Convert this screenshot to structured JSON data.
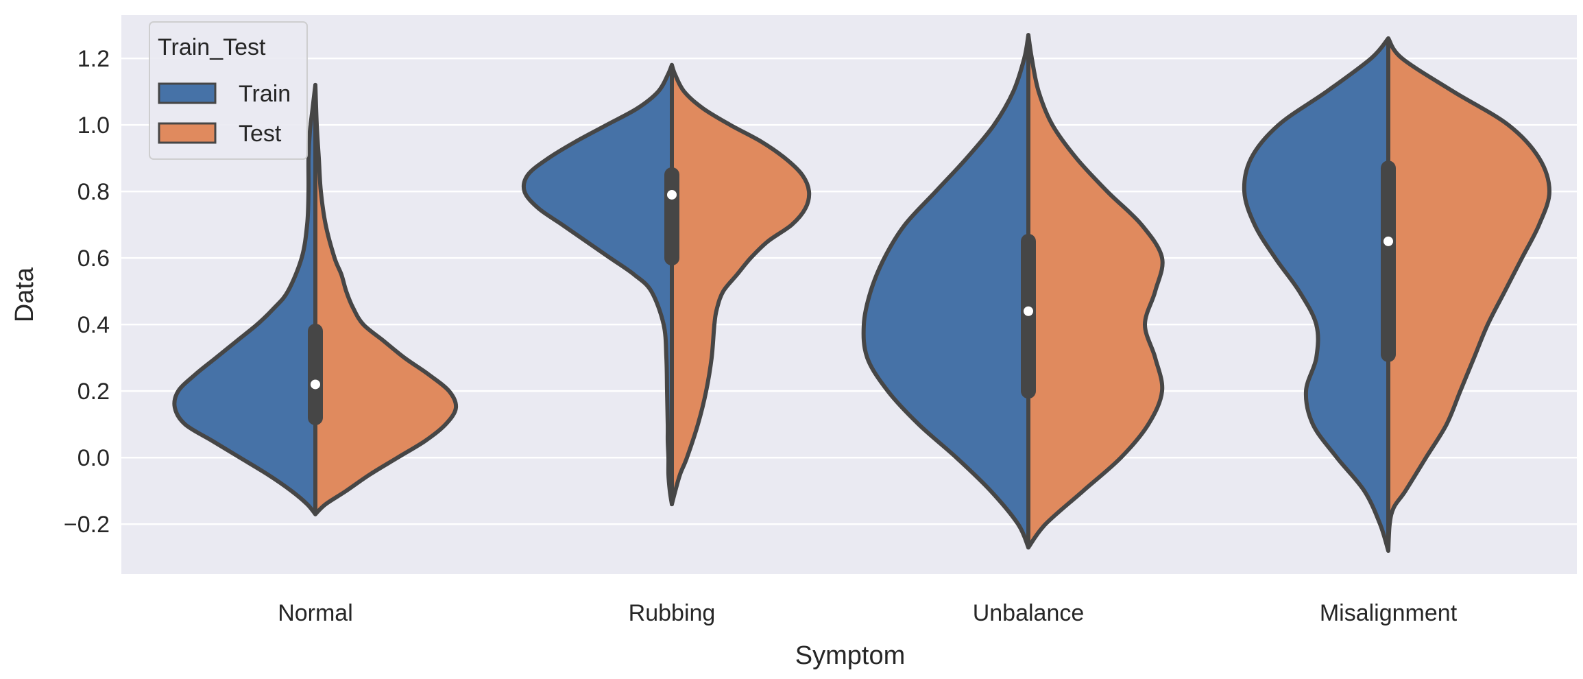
{
  "chart_data": {
    "type": "violin",
    "title": "",
    "xlabel": "Symptom",
    "ylabel": "Data",
    "ylim": [
      -0.35,
      1.33
    ],
    "yticks": [
      -0.2,
      0.0,
      0.2,
      0.4,
      0.6,
      0.8,
      1.0,
      1.2
    ],
    "ytick_labels": [
      "−0.2",
      "0.0",
      "0.2",
      "0.4",
      "0.6",
      "0.8",
      "1.0",
      "1.2"
    ],
    "grid": true,
    "categories": [
      "Normal",
      "Rubbing",
      "Unbalance",
      "Misalignment"
    ],
    "legend": {
      "title": "Train_Test",
      "placement": "top-left",
      "entries": [
        {
          "name": "Train",
          "color": "#4c72b0"
        },
        {
          "name": "Test",
          "color": "#dd8452"
        }
      ]
    },
    "colors": {
      "background": "#eaeaf2",
      "grid": "#ffffff",
      "train": "#4672a7",
      "test": "#e08a5e",
      "outline": "#464646",
      "box": "#464646",
      "median": "#ffffff"
    },
    "violins": [
      {
        "category": "Normal",
        "median": 0.22,
        "q1": 0.12,
        "q3": 0.38,
        "whisker_low": -0.17,
        "whisker_high": 1.12,
        "train": [
          [
            -0.17,
            0.0
          ],
          [
            -0.14,
            0.12
          ],
          [
            -0.1,
            0.35
          ],
          [
            -0.05,
            0.7
          ],
          [
            0.0,
            1.1
          ],
          [
            0.05,
            1.5
          ],
          [
            0.1,
            1.9
          ],
          [
            0.15,
            2.05
          ],
          [
            0.2,
            2.0
          ],
          [
            0.25,
            1.75
          ],
          [
            0.3,
            1.45
          ],
          [
            0.35,
            1.15
          ],
          [
            0.4,
            0.85
          ],
          [
            0.45,
            0.6
          ],
          [
            0.5,
            0.4
          ],
          [
            0.6,
            0.2
          ],
          [
            0.7,
            0.12
          ],
          [
            0.8,
            0.1
          ],
          [
            0.9,
            0.1
          ],
          [
            0.98,
            0.08
          ],
          [
            1.05,
            0.04
          ],
          [
            1.12,
            0.0
          ]
        ],
        "test": [
          [
            -0.17,
            0.0
          ],
          [
            -0.14,
            0.15
          ],
          [
            -0.1,
            0.45
          ],
          [
            -0.05,
            0.8
          ],
          [
            0.0,
            1.2
          ],
          [
            0.05,
            1.6
          ],
          [
            0.1,
            1.9
          ],
          [
            0.15,
            2.05
          ],
          [
            0.2,
            1.95
          ],
          [
            0.25,
            1.65
          ],
          [
            0.3,
            1.3
          ],
          [
            0.35,
            1.0
          ],
          [
            0.4,
            0.7
          ],
          [
            0.45,
            0.55
          ],
          [
            0.5,
            0.45
          ],
          [
            0.55,
            0.38
          ],
          [
            0.6,
            0.28
          ],
          [
            0.7,
            0.15
          ],
          [
            0.8,
            0.08
          ],
          [
            0.9,
            0.05
          ],
          [
            1.0,
            0.02
          ],
          [
            1.12,
            0.0
          ]
        ]
      },
      {
        "category": "Rubbing",
        "median": 0.79,
        "q1": 0.6,
        "q3": 0.85,
        "whisker_low": -0.14,
        "whisker_high": 1.18,
        "train": [
          [
            -0.14,
            0.0
          ],
          [
            -0.1,
            0.03
          ],
          [
            -0.05,
            0.05
          ],
          [
            0.0,
            0.05
          ],
          [
            0.05,
            0.06
          ],
          [
            0.1,
            0.06
          ],
          [
            0.2,
            0.07
          ],
          [
            0.3,
            0.08
          ],
          [
            0.4,
            0.12
          ],
          [
            0.5,
            0.3
          ],
          [
            0.55,
            0.55
          ],
          [
            0.6,
            0.9
          ],
          [
            0.65,
            1.25
          ],
          [
            0.7,
            1.6
          ],
          [
            0.75,
            1.95
          ],
          [
            0.8,
            2.15
          ],
          [
            0.85,
            2.1
          ],
          [
            0.9,
            1.8
          ],
          [
            0.95,
            1.4
          ],
          [
            1.0,
            0.95
          ],
          [
            1.05,
            0.5
          ],
          [
            1.1,
            0.2
          ],
          [
            1.15,
            0.06
          ],
          [
            1.18,
            0.0
          ]
        ],
        "test": [
          [
            -0.14,
            0.0
          ],
          [
            -0.1,
            0.05
          ],
          [
            -0.05,
            0.12
          ],
          [
            0.0,
            0.22
          ],
          [
            0.1,
            0.38
          ],
          [
            0.2,
            0.5
          ],
          [
            0.3,
            0.58
          ],
          [
            0.4,
            0.62
          ],
          [
            0.45,
            0.66
          ],
          [
            0.5,
            0.75
          ],
          [
            0.55,
            0.95
          ],
          [
            0.6,
            1.15
          ],
          [
            0.65,
            1.4
          ],
          [
            0.7,
            1.75
          ],
          [
            0.75,
            1.95
          ],
          [
            0.8,
            2.0
          ],
          [
            0.85,
            1.9
          ],
          [
            0.9,
            1.65
          ],
          [
            0.95,
            1.3
          ],
          [
            1.0,
            0.85
          ],
          [
            1.05,
            0.45
          ],
          [
            1.1,
            0.18
          ],
          [
            1.15,
            0.05
          ],
          [
            1.18,
            0.0
          ]
        ]
      },
      {
        "category": "Unbalance",
        "median": 0.44,
        "q1": 0.2,
        "q3": 0.65,
        "whisker_low": -0.27,
        "whisker_high": 1.27,
        "train": [
          [
            -0.27,
            0.0
          ],
          [
            -0.2,
            0.15
          ],
          [
            -0.1,
            0.55
          ],
          [
            0.0,
            1.05
          ],
          [
            0.1,
            1.6
          ],
          [
            0.2,
            2.05
          ],
          [
            0.3,
            2.35
          ],
          [
            0.4,
            2.4
          ],
          [
            0.5,
            2.3
          ],
          [
            0.6,
            2.1
          ],
          [
            0.7,
            1.8
          ],
          [
            0.8,
            1.35
          ],
          [
            0.9,
            0.9
          ],
          [
            1.0,
            0.5
          ],
          [
            1.1,
            0.22
          ],
          [
            1.2,
            0.06
          ],
          [
            1.27,
            0.0
          ]
        ],
        "test": [
          [
            -0.27,
            0.0
          ],
          [
            -0.2,
            0.25
          ],
          [
            -0.1,
            0.8
          ],
          [
            0.0,
            1.35
          ],
          [
            0.1,
            1.75
          ],
          [
            0.2,
            1.95
          ],
          [
            0.3,
            1.85
          ],
          [
            0.4,
            1.7
          ],
          [
            0.5,
            1.85
          ],
          [
            0.6,
            1.95
          ],
          [
            0.7,
            1.65
          ],
          [
            0.8,
            1.15
          ],
          [
            0.9,
            0.7
          ],
          [
            1.0,
            0.35
          ],
          [
            1.1,
            0.15
          ],
          [
            1.2,
            0.05
          ],
          [
            1.27,
            0.0
          ]
        ]
      },
      {
        "category": "Misalignment",
        "median": 0.65,
        "q1": 0.31,
        "q3": 0.87,
        "whisker_low": -0.28,
        "whisker_high": 1.26,
        "train": [
          [
            -0.28,
            0.0
          ],
          [
            -0.2,
            0.12
          ],
          [
            -0.1,
            0.35
          ],
          [
            0.0,
            0.75
          ],
          [
            0.1,
            1.1
          ],
          [
            0.2,
            1.2
          ],
          [
            0.3,
            1.05
          ],
          [
            0.4,
            1.05
          ],
          [
            0.5,
            1.3
          ],
          [
            0.6,
            1.65
          ],
          [
            0.7,
            1.95
          ],
          [
            0.8,
            2.1
          ],
          [
            0.9,
            2.0
          ],
          [
            1.0,
            1.6
          ],
          [
            1.1,
            0.9
          ],
          [
            1.2,
            0.25
          ],
          [
            1.26,
            0.0
          ]
        ],
        "test": [
          [
            -0.28,
            0.0
          ],
          [
            -0.2,
            0.02
          ],
          [
            -0.15,
            0.08
          ],
          [
            -0.1,
            0.25
          ],
          [
            0.0,
            0.55
          ],
          [
            0.1,
            0.85
          ],
          [
            0.2,
            1.05
          ],
          [
            0.3,
            1.25
          ],
          [
            0.4,
            1.45
          ],
          [
            0.5,
            1.7
          ],
          [
            0.6,
            1.95
          ],
          [
            0.7,
            2.2
          ],
          [
            0.8,
            2.35
          ],
          [
            0.9,
            2.2
          ],
          [
            1.0,
            1.75
          ],
          [
            1.1,
            0.95
          ],
          [
            1.2,
            0.2
          ],
          [
            1.26,
            0.0
          ]
        ]
      }
    ]
  }
}
